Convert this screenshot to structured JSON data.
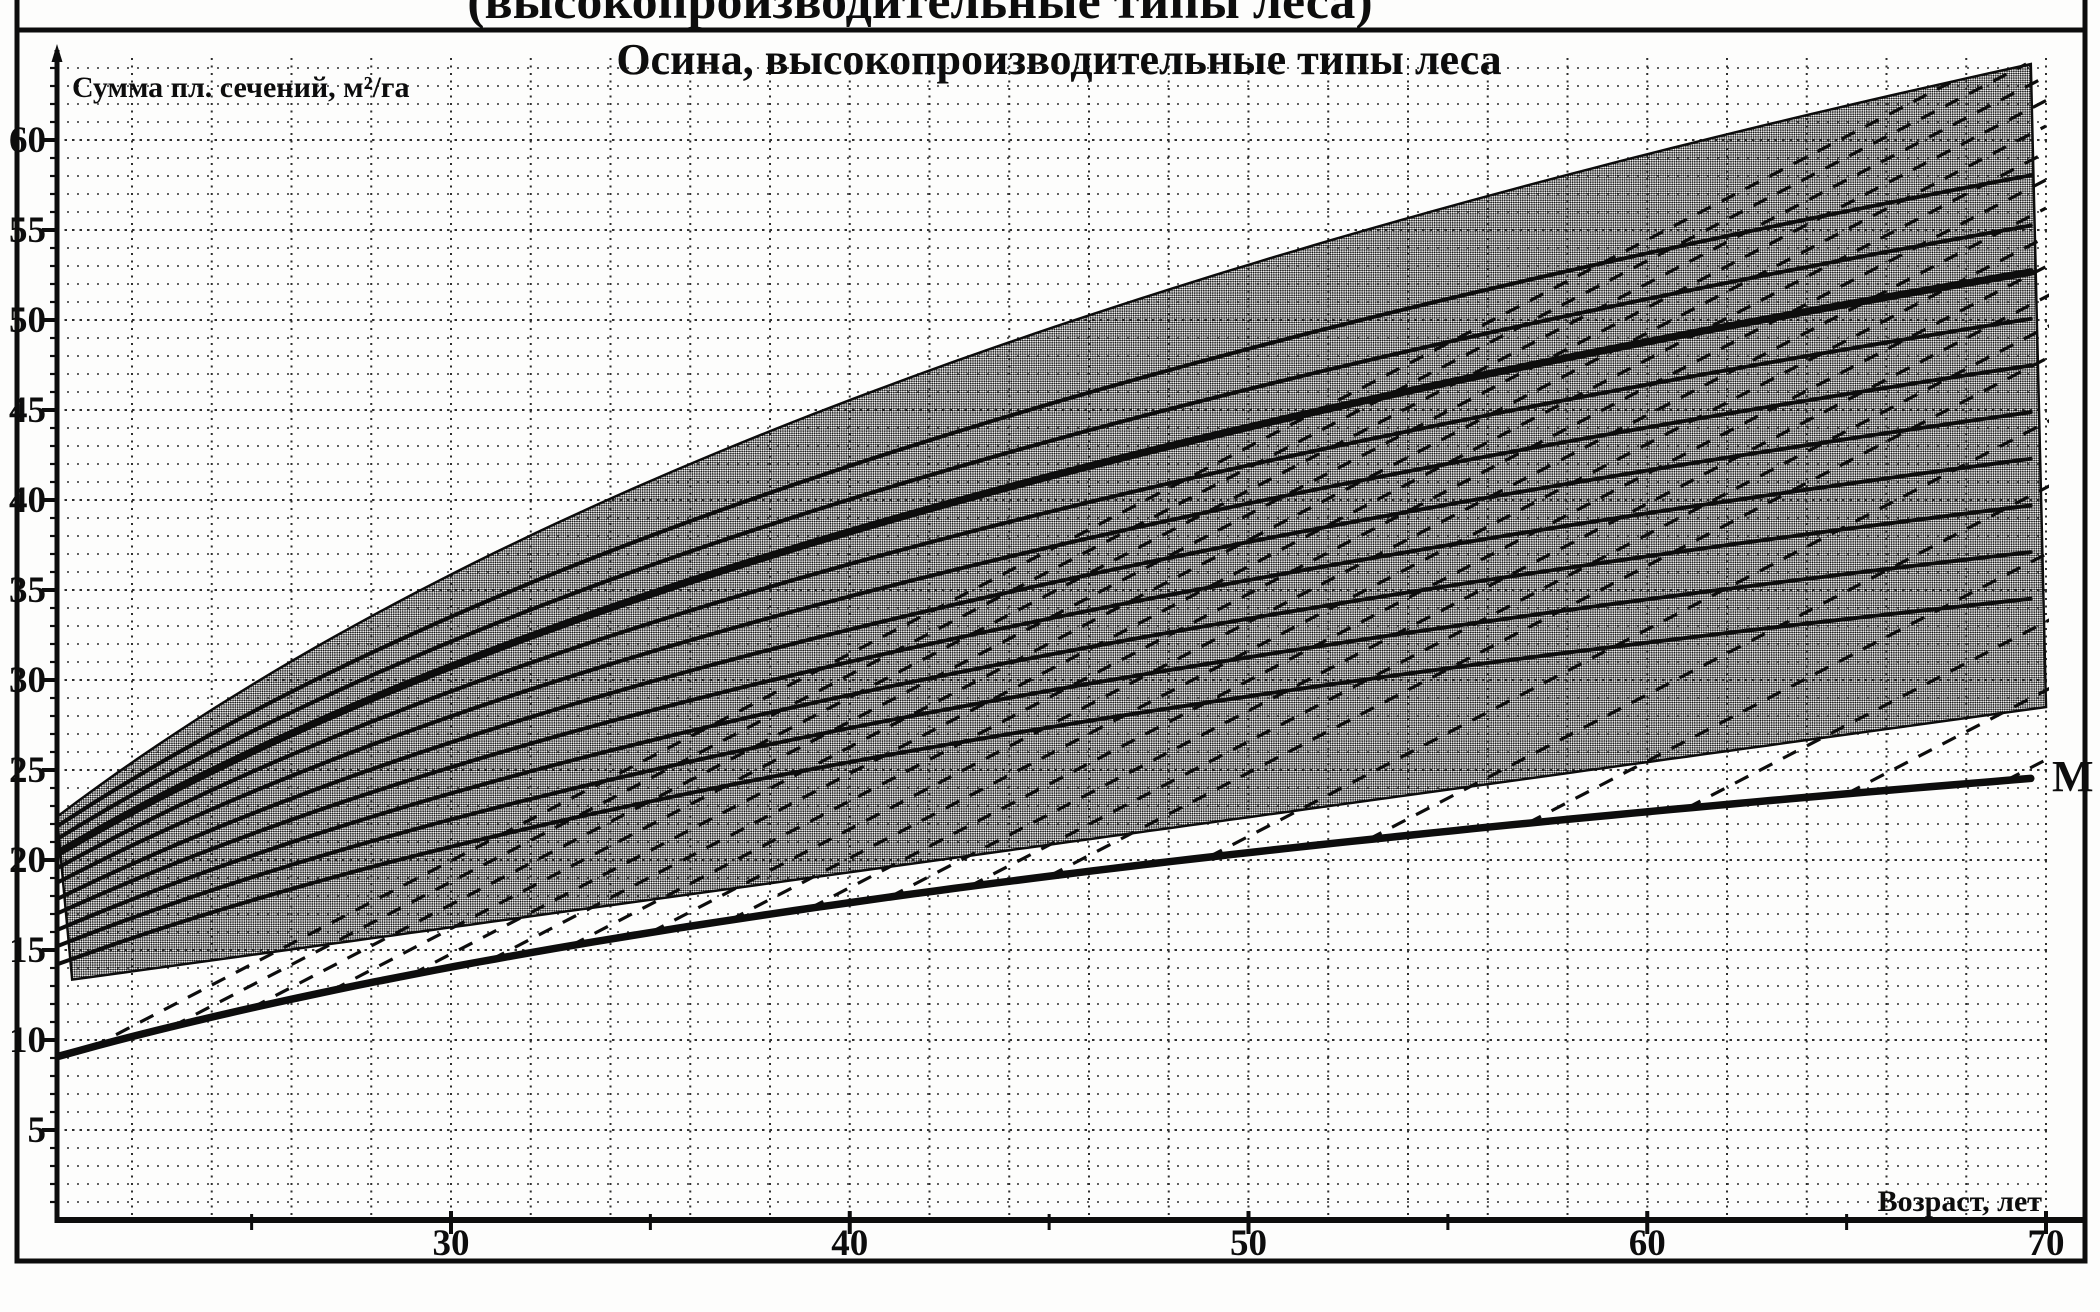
{
  "page": {
    "background": "#fdfdfc",
    "ink": "#0d0d0d"
  },
  "figure": {
    "cropped_caption_above": "(высокопроизводительные типы леса)",
    "m_label": "M"
  },
  "chart_data": {
    "type": "area",
    "title": "Осина, высокопроизводительные типы леса",
    "xlabel": "Возраст, лет",
    "ylabel": "Сумма пл. сечений, м²/га",
    "xlim": [
      20,
      70
    ],
    "ylim": [
      0,
      65
    ],
    "grid": "dotted; vertical every 2 years, horizontal every 1 m2/ha",
    "legend": "none",
    "x_ticks_major": [
      30,
      40,
      50,
      60,
      70
    ],
    "x_ticks_minor": [
      25,
      35,
      45,
      55,
      65
    ],
    "y_ticks_major": [
      5,
      10,
      15,
      20,
      25,
      30,
      35,
      40,
      45,
      50,
      55,
      60
    ],
    "band": {
      "name": "optimal-basal-area-zone",
      "fill_style": "diagonal halftone gray",
      "top_edge": {
        "shape": "log",
        "age20": 22.2,
        "age70": 64.4
      },
      "bottom_edge": {
        "shape": "linear",
        "age20": 13.2,
        "age70": 28.5
      }
    },
    "solid_curves": {
      "shape": "log",
      "thick_index": 7,
      "curves": [
        {
          "age20": 14.1,
          "age70": 34.6
        },
        {
          "age20": 15.1,
          "age70": 37.2
        },
        {
          "age20": 16.0,
          "age70": 39.8
        },
        {
          "age20": 16.9,
          "age70": 42.4
        },
        {
          "age20": 17.7,
          "age70": 45.0
        },
        {
          "age20": 18.6,
          "age70": 47.6
        },
        {
          "age20": 19.4,
          "age70": 50.2
        },
        {
          "age20": 20.2,
          "age70": 52.8
        },
        {
          "age20": 21.0,
          "age70": 55.4
        },
        {
          "age20": 21.7,
          "age70": 58.2
        }
      ]
    },
    "m_curve": {
      "label": "M",
      "shape": "log",
      "age20": 9.0,
      "age70": 24.6,
      "points_by_age": {
        "20": 9.0,
        "30": 14.1,
        "40": 17.6,
        "50": 20.4,
        "60": 22.7,
        "70": 24.6
      }
    },
    "dashed_lines": {
      "meaning": "thinning recovery trajectories rising from curve M into the shaded zone",
      "slope_m2_per_year": 1.15,
      "start_on": "m_curve",
      "start_ages": [
        21,
        23,
        25,
        27,
        29,
        31,
        33,
        35,
        37,
        39,
        41,
        43,
        45,
        49,
        53,
        57,
        61,
        65,
        69
      ]
    }
  }
}
